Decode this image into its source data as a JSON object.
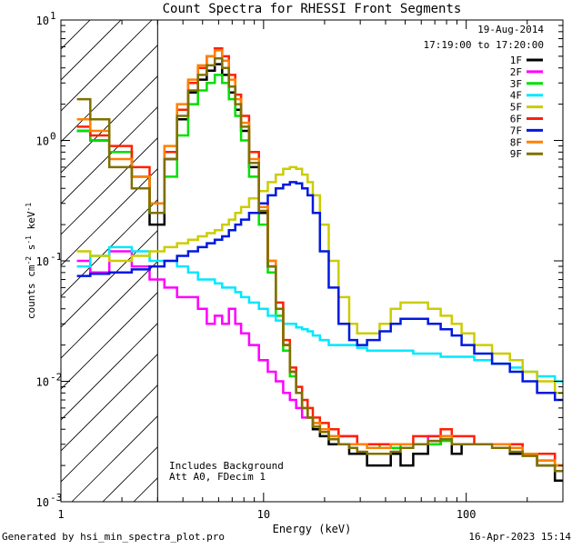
{
  "chart_data": {
    "type": "line",
    "title": "Count Spectra for RHESSI Front Segments",
    "xlabel": "Energy (keV)",
    "ylabel": "counts cm",
    "ylabel_parts": [
      "counts cm",
      "-2",
      " s",
      "-1",
      " keV",
      "-1"
    ],
    "xscale": "log",
    "yscale": "log",
    "xlim": [
      1,
      300
    ],
    "ylim": [
      0.001,
      10
    ],
    "x_ticks": [
      {
        "value": 1,
        "label": "1"
      },
      {
        "value": 10,
        "label": "10"
      },
      {
        "value": 100,
        "label": "100"
      }
    ],
    "y_ticks": [
      {
        "value": 0.001,
        "base": "10",
        "exp": "-3"
      },
      {
        "value": 0.01,
        "base": "10",
        "exp": "-2"
      },
      {
        "value": 0.1,
        "base": "10",
        "exp": "-1"
      },
      {
        "value": 1,
        "base": "10",
        "exp": "0"
      },
      {
        "value": 10,
        "base": "10",
        "exp": "1"
      }
    ],
    "date": "19-Aug-2014",
    "time_range": "17:19:00 to 17:20:00",
    "annotations": [
      "Includes Background",
      "Att A0, FDecim 1"
    ],
    "shaded_region": {
      "x_from": 1,
      "x_to": 3,
      "style": "diagonal-hatch"
    },
    "energy_bins": [
      1.3,
      1.5,
      2,
      2.5,
      3,
      3.5,
      4,
      4.5,
      5,
      5.5,
      6,
      6.5,
      7,
      7.5,
      8,
      9,
      10,
      11,
      12,
      13,
      14,
      15,
      16,
      17,
      18,
      20,
      22,
      25,
      28,
      30,
      35,
      40,
      45,
      50,
      60,
      70,
      80,
      90,
      100,
      120,
      150,
      180,
      200,
      250,
      300
    ],
    "series": [
      {
        "name": "1F",
        "color": "#000000",
        "values": [
          1.2,
          1.0,
          0.8,
          0.5,
          0.2,
          0.7,
          1.5,
          2.5,
          3.2,
          3.8,
          4.3,
          3.5,
          2.5,
          1.8,
          1.2,
          0.6,
          0.25,
          0.09,
          0.04,
          0.02,
          0.012,
          0.008,
          0.006,
          0.005,
          0.004,
          0.0035,
          0.003,
          0.003,
          0.0025,
          0.0025,
          0.002,
          0.002,
          0.0025,
          0.002,
          0.0025,
          0.003,
          0.0035,
          0.0025,
          0.003,
          0.003,
          0.003,
          0.0025,
          0.0025,
          0.002,
          0.0015
        ]
      },
      {
        "name": "2F",
        "color": "#ff00ff",
        "values": [
          0.1,
          0.08,
          0.12,
          0.09,
          0.07,
          0.06,
          0.05,
          0.05,
          0.04,
          0.03,
          0.035,
          0.03,
          0.04,
          0.03,
          0.025,
          0.02,
          0.015,
          0.012,
          0.01,
          0.008,
          0.007,
          0.006,
          0.005,
          0.005,
          0.0045,
          0.004,
          0.004,
          0.0035,
          0.0035,
          0.003,
          0.003,
          0.003,
          0.003,
          0.003,
          0.003,
          0.0035,
          0.0035,
          0.003,
          0.003,
          0.003,
          0.003,
          0.003,
          0.0025,
          0.0025,
          0.002
        ]
      },
      {
        "name": "3F",
        "color": "#00e000",
        "values": [
          1.2,
          1.0,
          0.8,
          0.5,
          0.25,
          0.5,
          1.1,
          2.0,
          2.6,
          3.0,
          3.5,
          3.0,
          2.2,
          1.6,
          1.0,
          0.5,
          0.2,
          0.08,
          0.035,
          0.018,
          0.011,
          0.008,
          0.006,
          0.005,
          0.0045,
          0.004,
          0.0035,
          0.003,
          0.003,
          0.003,
          0.003,
          0.0028,
          0.0028,
          0.003,
          0.003,
          0.003,
          0.0032,
          0.003,
          0.003,
          0.003,
          0.003,
          0.003,
          0.0025,
          0.0022,
          0.002
        ]
      },
      {
        "name": "4F",
        "color": "#00e8ff",
        "values": [
          0.09,
          0.11,
          0.13,
          0.12,
          0.1,
          0.1,
          0.09,
          0.08,
          0.07,
          0.07,
          0.065,
          0.06,
          0.06,
          0.055,
          0.05,
          0.045,
          0.04,
          0.035,
          0.032,
          0.03,
          0.03,
          0.028,
          0.027,
          0.026,
          0.024,
          0.022,
          0.02,
          0.02,
          0.02,
          0.019,
          0.018,
          0.018,
          0.018,
          0.018,
          0.017,
          0.017,
          0.016,
          0.016,
          0.016,
          0.015,
          0.014,
          0.013,
          0.012,
          0.011,
          0.01
        ]
      },
      {
        "name": "5F",
        "color": "#cccc00",
        "values": [
          0.12,
          0.11,
          0.1,
          0.11,
          0.12,
          0.13,
          0.14,
          0.15,
          0.16,
          0.17,
          0.18,
          0.2,
          0.22,
          0.25,
          0.28,
          0.33,
          0.38,
          0.45,
          0.52,
          0.58,
          0.6,
          0.58,
          0.52,
          0.45,
          0.35,
          0.2,
          0.1,
          0.05,
          0.03,
          0.025,
          0.025,
          0.03,
          0.04,
          0.045,
          0.045,
          0.04,
          0.035,
          0.03,
          0.025,
          0.02,
          0.017,
          0.015,
          0.012,
          0.01,
          0.008
        ]
      },
      {
        "name": "6F",
        "color": "#ff2000",
        "values": [
          1.3,
          1.1,
          0.9,
          0.6,
          0.3,
          0.8,
          1.8,
          3.0,
          4.0,
          5.0,
          5.8,
          5.0,
          3.5,
          2.4,
          1.6,
          0.8,
          0.3,
          0.1,
          0.045,
          0.022,
          0.013,
          0.009,
          0.007,
          0.006,
          0.005,
          0.0045,
          0.004,
          0.0035,
          0.0035,
          0.003,
          0.003,
          0.003,
          0.003,
          0.003,
          0.0035,
          0.0035,
          0.004,
          0.0035,
          0.0035,
          0.003,
          0.003,
          0.003,
          0.0025,
          0.0025,
          0.002
        ]
      },
      {
        "name": "7F",
        "color": "#0018e0",
        "values": [
          0.075,
          0.078,
          0.08,
          0.085,
          0.09,
          0.1,
          0.11,
          0.12,
          0.13,
          0.14,
          0.15,
          0.16,
          0.18,
          0.2,
          0.22,
          0.25,
          0.3,
          0.35,
          0.4,
          0.43,
          0.45,
          0.44,
          0.4,
          0.35,
          0.25,
          0.12,
          0.06,
          0.03,
          0.022,
          0.02,
          0.022,
          0.026,
          0.03,
          0.033,
          0.033,
          0.03,
          0.027,
          0.024,
          0.02,
          0.017,
          0.014,
          0.012,
          0.01,
          0.008,
          0.007
        ]
      },
      {
        "name": "8F",
        "color": "#ff8000",
        "values": [
          1.5,
          1.2,
          0.7,
          0.5,
          0.3,
          0.9,
          2.0,
          3.2,
          4.2,
          5.0,
          5.6,
          4.6,
          3.2,
          2.2,
          1.4,
          0.7,
          0.28,
          0.1,
          0.04,
          0.02,
          0.012,
          0.008,
          0.006,
          0.005,
          0.0045,
          0.004,
          0.0035,
          0.003,
          0.003,
          0.003,
          0.0028,
          0.0028,
          0.003,
          0.003,
          0.003,
          0.0032,
          0.0035,
          0.003,
          0.003,
          0.003,
          0.003,
          0.0028,
          0.0025,
          0.0022,
          0.002
        ]
      },
      {
        "name": "9F",
        "color": "#7f7000",
        "values": [
          2.2,
          1.5,
          0.6,
          0.4,
          0.25,
          0.7,
          1.6,
          2.6,
          3.5,
          4.2,
          4.8,
          4.0,
          2.8,
          2.0,
          1.3,
          0.65,
          0.26,
          0.09,
          0.04,
          0.02,
          0.012,
          0.008,
          0.006,
          0.005,
          0.0042,
          0.0038,
          0.0033,
          0.003,
          0.0028,
          0.0026,
          0.0025,
          0.0025,
          0.0026,
          0.0028,
          0.003,
          0.0032,
          0.0033,
          0.003,
          0.003,
          0.003,
          0.0028,
          0.0026,
          0.0024,
          0.002,
          0.0018
        ]
      }
    ]
  },
  "footer": {
    "generated_by": "Generated by hsi_min_spectra_plot.pro",
    "timestamp": "16-Apr-2023 15:14"
  }
}
